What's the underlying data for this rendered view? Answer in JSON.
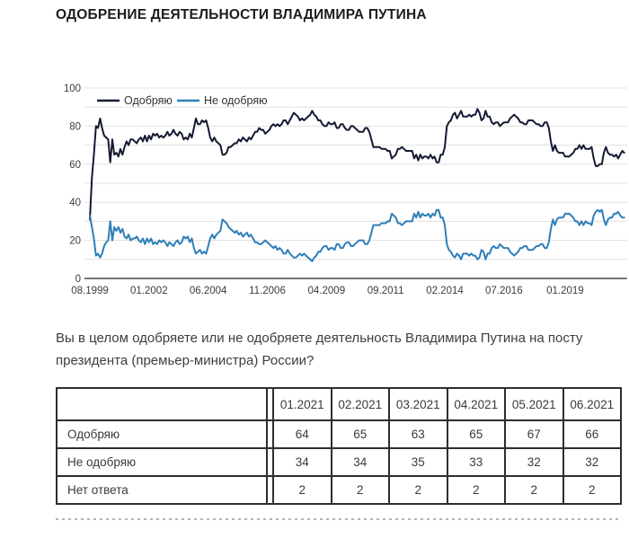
{
  "title": "ОДОБРЕНИЕ ДЕЯТЕЛЬНОСТИ ВЛАДИМИРА ПУТИНА",
  "question": "Вы в целом одобряете или не одобряете деятельность Владимира Путина на посту президента (премьер-министра) России?",
  "colors": {
    "approve_line": "#141a33",
    "disapprove_line": "#2e7fb8",
    "grid": "#e0e0e0",
    "axis": "#4a4a4a",
    "tick_text": "#3c3c3c",
    "table_border": "#2e2e2e"
  },
  "chart_data": {
    "type": "line",
    "unit": "percent",
    "x_frequency": "monthly",
    "x_start": "08.1999",
    "x_end": "06.2021",
    "ylim": [
      0,
      100
    ],
    "y_ticks": [
      0,
      20,
      40,
      60,
      80,
      100
    ],
    "grid_step": 10,
    "legend_position": "top-left-inside",
    "x_ticks": [
      {
        "label": "08.1999",
        "month_index": 0
      },
      {
        "label": "01.2002",
        "month_index": 29
      },
      {
        "label": "06.2004",
        "month_index": 58
      },
      {
        "label": "11.2006",
        "month_index": 87
      },
      {
        "label": "04.2009",
        "month_index": 116
      },
      {
        "label": "09.2011",
        "month_index": 145
      },
      {
        "label": "02.2014",
        "month_index": 174
      },
      {
        "label": "07.2016",
        "month_index": 203
      },
      {
        "label": "01.2019",
        "month_index": 233
      }
    ],
    "series": [
      {
        "name": "Одобряю",
        "color": "#141a33",
        "values": [
          31,
          53,
          65,
          80,
          79,
          84,
          79,
          75,
          74,
          73,
          61,
          73,
          65,
          66,
          64,
          68,
          65,
          69,
          72,
          70,
          73,
          73,
          72,
          71,
          73,
          74,
          72,
          75,
          72,
          75,
          73,
          76,
          75,
          76,
          74,
          75,
          74,
          75,
          77,
          75,
          76,
          78,
          76,
          75,
          77,
          76,
          73,
          74,
          73,
          76,
          74,
          79,
          84,
          81,
          81,
          83,
          82,
          83,
          79,
          74,
          72,
          74,
          72,
          71,
          70,
          65,
          65,
          66,
          69,
          69,
          70,
          71,
          71,
          73,
          72,
          74,
          73,
          72,
          74,
          73,
          75,
          77,
          77,
          79,
          78,
          78,
          76,
          77,
          78,
          80,
          81,
          80,
          81,
          80,
          81,
          83,
          83,
          81,
          83,
          85,
          87,
          86,
          85,
          83,
          84,
          83,
          84,
          85,
          86,
          88,
          86,
          85,
          83,
          83,
          81,
          80,
          80,
          82,
          81,
          81,
          82,
          79,
          79,
          81,
          81,
          79,
          78,
          78,
          80,
          80,
          79,
          78,
          77,
          77,
          77,
          79,
          79,
          77,
          73,
          69,
          69,
          69,
          69,
          68,
          68,
          68,
          67,
          67,
          63,
          64,
          65,
          68,
          68,
          69,
          68,
          67,
          67,
          67,
          67,
          63,
          65,
          62,
          65,
          63,
          64,
          64,
          63,
          65,
          63,
          64,
          61,
          61,
          65,
          65,
          69,
          80,
          82,
          83,
          86,
          87,
          84,
          86,
          88,
          85,
          85,
          85,
          86,
          85,
          86,
          86,
          89,
          87,
          83,
          84,
          88,
          85,
          85,
          82,
          81,
          82,
          82,
          80,
          81,
          82,
          82,
          82,
          84,
          85,
          86,
          85,
          84,
          82,
          82,
          81,
          81,
          83,
          83,
          83,
          82,
          81,
          81,
          80,
          80,
          82,
          82,
          79,
          72,
          67,
          70,
          67,
          66,
          66,
          66,
          64,
          64,
          64,
          65,
          66,
          68,
          68,
          70,
          68,
          70,
          68,
          68,
          68,
          69,
          63,
          59,
          59,
          60,
          60,
          66,
          69,
          66,
          65,
          65,
          64,
          65,
          63,
          65,
          67,
          66
        ]
      },
      {
        "name": "Не одобряю",
        "color": "#2e7fb8",
        "values": [
          33,
          27,
          21,
          12,
          13,
          11,
          13,
          17,
          19,
          20,
          30,
          20,
          27,
          25,
          27,
          24,
          26,
          22,
          21,
          23,
          20,
          21,
          21,
          22,
          20,
          19,
          21,
          18,
          21,
          19,
          21,
          18,
          19,
          18,
          20,
          19,
          20,
          19,
          17,
          19,
          18,
          17,
          19,
          20,
          18,
          19,
          22,
          21,
          22,
          19,
          21,
          16,
          13,
          14,
          15,
          13,
          14,
          13,
          17,
          21,
          23,
          21,
          23,
          24,
          25,
          31,
          30,
          29,
          27,
          26,
          25,
          24,
          25,
          23,
          24,
          22,
          23,
          24,
          22,
          23,
          21,
          19,
          19,
          18,
          18,
          19,
          20,
          19,
          18,
          17,
          16,
          17,
          15,
          16,
          15,
          13,
          13,
          15,
          13,
          12,
          11,
          11,
          12,
          13,
          12,
          13,
          12,
          11,
          10,
          9,
          11,
          12,
          14,
          14,
          16,
          17,
          17,
          15,
          16,
          16,
          15,
          18,
          18,
          16,
          16,
          18,
          19,
          19,
          17,
          17,
          18,
          19,
          20,
          20,
          20,
          18,
          18,
          20,
          24,
          28,
          28,
          28,
          28,
          29,
          29,
          29,
          30,
          30,
          34,
          33,
          32,
          29,
          29,
          28,
          29,
          30,
          30,
          30,
          30,
          34,
          32,
          35,
          32,
          34,
          33,
          33,
          34,
          32,
          34,
          33,
          36,
          36,
          32,
          32,
          28,
          18,
          15,
          14,
          12,
          11,
          13,
          12,
          10,
          13,
          13,
          13,
          12,
          13,
          12,
          12,
          10,
          11,
          15,
          14,
          10,
          13,
          13,
          16,
          17,
          16,
          16,
          18,
          17,
          16,
          16,
          16,
          14,
          13,
          12,
          13,
          14,
          16,
          16,
          17,
          17,
          15,
          15,
          15,
          16,
          17,
          17,
          18,
          18,
          16,
          16,
          19,
          26,
          31,
          28,
          31,
          32,
          32,
          32,
          34,
          34,
          34,
          33,
          32,
          30,
          30,
          28,
          30,
          28,
          30,
          29,
          29,
          28,
          33,
          35,
          36,
          35,
          36,
          31,
          28,
          31,
          32,
          32,
          34,
          34,
          35,
          33,
          32,
          32
        ]
      }
    ]
  },
  "table": {
    "columns": [
      "01.2021",
      "02.2021",
      "03.2021",
      "04.2021",
      "05.2021",
      "06.2021"
    ],
    "rows": [
      {
        "label": "Одобряю",
        "values": [
          64,
          65,
          63,
          65,
          67,
          66
        ]
      },
      {
        "label": "Не одобряю",
        "values": [
          34,
          34,
          35,
          33,
          32,
          32
        ]
      },
      {
        "label": "Нет ответа",
        "values": [
          2,
          2,
          2,
          2,
          2,
          2
        ]
      }
    ]
  }
}
